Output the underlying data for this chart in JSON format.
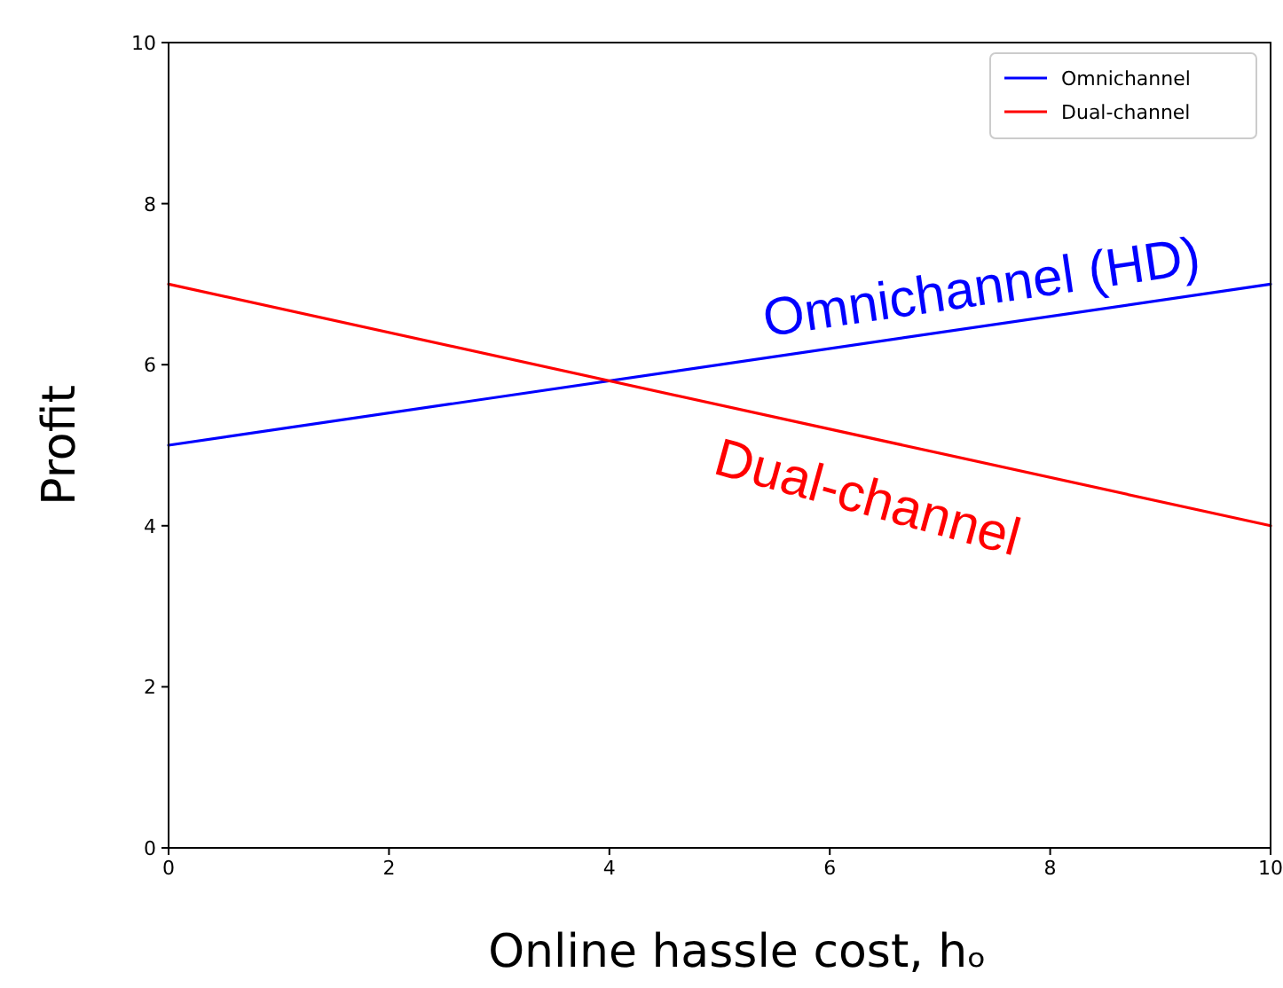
{
  "chart_data": {
    "type": "line",
    "xlabel": "Online hassle cost, hₒ",
    "ylabel": "Profit",
    "x": [
      0,
      10
    ],
    "series": [
      {
        "name": "Omnichannel",
        "color": "#0000ff",
        "values": [
          5,
          7
        ]
      },
      {
        "name": "Dual-channel",
        "color": "#ff0000",
        "values": [
          7,
          4
        ]
      }
    ],
    "xlim": [
      0,
      10
    ],
    "ylim": [
      0,
      10
    ],
    "xticks": [
      0,
      2,
      4,
      6,
      8,
      10
    ],
    "yticks": [
      0,
      2,
      4,
      6,
      8,
      10
    ],
    "legend": "top right",
    "grid": false,
    "annotations": [
      "Omnichannel (HD)",
      "Dual-channel"
    ]
  }
}
